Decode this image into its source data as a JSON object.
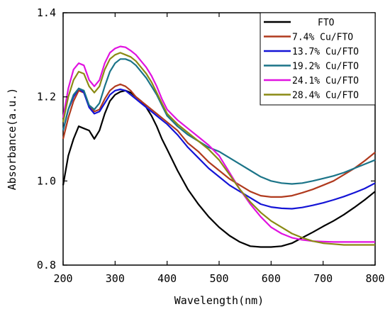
{
  "chart_data": {
    "type": "line",
    "xlabel": "Wavelength(nm)",
    "ylabel": "Absorbance(a.u.)",
    "xlim": [
      200,
      800
    ],
    "ylim": [
      0.8,
      1.4
    ],
    "xticks": [
      200,
      300,
      400,
      500,
      600,
      700,
      800
    ],
    "yticks": [
      0.8,
      1.0,
      1.2,
      1.4
    ],
    "ytick_labels": [
      "0.8",
      "1.0",
      "1.2",
      "1.4"
    ],
    "grid": false,
    "legend_position": "top-right",
    "series": [
      {
        "name": "FTO",
        "color": "#000000",
        "x": [
          200,
          210,
          220,
          230,
          240,
          250,
          260,
          270,
          280,
          290,
          300,
          310,
          320,
          330,
          340,
          350,
          360,
          370,
          380,
          390,
          400,
          420,
          440,
          460,
          480,
          500,
          520,
          540,
          560,
          580,
          600,
          620,
          640,
          660,
          680,
          700,
          720,
          740,
          760,
          780,
          800
        ],
        "y": [
          0.99,
          1.06,
          1.1,
          1.13,
          1.125,
          1.12,
          1.1,
          1.12,
          1.16,
          1.19,
          1.205,
          1.212,
          1.215,
          1.21,
          1.2,
          1.19,
          1.175,
          1.155,
          1.13,
          1.1,
          1.075,
          1.025,
          0.98,
          0.945,
          0.915,
          0.89,
          0.87,
          0.855,
          0.845,
          0.843,
          0.843,
          0.845,
          0.852,
          0.865,
          0.878,
          0.892,
          0.905,
          0.92,
          0.937,
          0.955,
          0.975
        ]
      },
      {
        "name": "7.4%  Cu/FTO",
        "color": "#b03a1e",
        "x": [
          200,
          210,
          220,
          230,
          240,
          250,
          260,
          270,
          280,
          290,
          300,
          310,
          320,
          330,
          340,
          350,
          360,
          370,
          380,
          390,
          400,
          420,
          440,
          460,
          480,
          500,
          520,
          540,
          560,
          580,
          600,
          620,
          640,
          660,
          680,
          700,
          720,
          740,
          760,
          780,
          800
        ],
        "y": [
          1.1,
          1.15,
          1.19,
          1.215,
          1.21,
          1.18,
          1.165,
          1.17,
          1.195,
          1.215,
          1.225,
          1.23,
          1.225,
          1.215,
          1.2,
          1.19,
          1.18,
          1.17,
          1.16,
          1.15,
          1.14,
          1.12,
          1.09,
          1.07,
          1.045,
          1.025,
          1.005,
          0.99,
          0.975,
          0.965,
          0.962,
          0.962,
          0.965,
          0.972,
          0.98,
          0.99,
          1.0,
          1.015,
          1.03,
          1.048,
          1.068
        ]
      },
      {
        "name": "13.7% Cu/FTO",
        "color": "#1414d6",
        "x": [
          200,
          210,
          220,
          230,
          240,
          250,
          260,
          270,
          280,
          290,
          300,
          310,
          320,
          330,
          340,
          350,
          360,
          370,
          380,
          390,
          400,
          420,
          440,
          460,
          480,
          500,
          520,
          540,
          560,
          580,
          600,
          620,
          640,
          660,
          680,
          700,
          720,
          740,
          760,
          780,
          800
        ],
        "y": [
          1.12,
          1.17,
          1.2,
          1.22,
          1.21,
          1.175,
          1.16,
          1.165,
          1.185,
          1.205,
          1.215,
          1.218,
          1.215,
          1.205,
          1.195,
          1.185,
          1.175,
          1.165,
          1.155,
          1.145,
          1.135,
          1.11,
          1.08,
          1.055,
          1.03,
          1.01,
          0.99,
          0.975,
          0.96,
          0.945,
          0.938,
          0.935,
          0.934,
          0.937,
          0.942,
          0.948,
          0.955,
          0.963,
          0.972,
          0.982,
          0.995
        ]
      },
      {
        "name": "19.2% Cu/FTO",
        "color": "#1b7488",
        "x": [
          200,
          210,
          220,
          230,
          240,
          250,
          260,
          270,
          280,
          290,
          300,
          310,
          320,
          330,
          340,
          350,
          360,
          370,
          380,
          390,
          400,
          420,
          440,
          460,
          480,
          500,
          520,
          540,
          560,
          580,
          600,
          620,
          640,
          660,
          680,
          700,
          720,
          740,
          760,
          780,
          800
        ],
        "y": [
          1.12,
          1.17,
          1.205,
          1.22,
          1.215,
          1.18,
          1.17,
          1.185,
          1.225,
          1.26,
          1.28,
          1.29,
          1.29,
          1.285,
          1.275,
          1.26,
          1.245,
          1.225,
          1.205,
          1.18,
          1.155,
          1.13,
          1.11,
          1.095,
          1.08,
          1.07,
          1.055,
          1.04,
          1.025,
          1.01,
          1.0,
          0.995,
          0.993,
          0.995,
          1.0,
          1.006,
          1.012,
          1.02,
          1.03,
          1.04,
          1.05
        ]
      },
      {
        "name": "24.1% Cu/FTO",
        "color": "#e012e0",
        "x": [
          200,
          210,
          220,
          230,
          240,
          250,
          260,
          270,
          280,
          290,
          300,
          310,
          320,
          330,
          340,
          350,
          360,
          370,
          380,
          390,
          400,
          420,
          440,
          460,
          480,
          500,
          520,
          540,
          560,
          580,
          600,
          620,
          640,
          660,
          680,
          700,
          720,
          740,
          760,
          780,
          800
        ],
        "y": [
          1.15,
          1.22,
          1.265,
          1.28,
          1.275,
          1.24,
          1.225,
          1.24,
          1.28,
          1.305,
          1.315,
          1.32,
          1.318,
          1.31,
          1.3,
          1.285,
          1.27,
          1.25,
          1.225,
          1.195,
          1.17,
          1.145,
          1.125,
          1.105,
          1.085,
          1.06,
          1.02,
          0.98,
          0.945,
          0.915,
          0.89,
          0.875,
          0.865,
          0.86,
          0.857,
          0.856,
          0.855,
          0.855,
          0.855,
          0.855,
          0.855
        ]
      },
      {
        "name": "28.4% Cu/FTO",
        "color": "#8a8a14",
        "x": [
          200,
          210,
          220,
          230,
          240,
          250,
          260,
          270,
          280,
          290,
          300,
          310,
          320,
          330,
          340,
          350,
          360,
          370,
          380,
          390,
          400,
          420,
          440,
          460,
          480,
          500,
          520,
          540,
          560,
          580,
          600,
          620,
          640,
          660,
          680,
          700,
          720,
          740,
          760,
          780,
          800
        ],
        "y": [
          1.14,
          1.2,
          1.24,
          1.26,
          1.255,
          1.225,
          1.21,
          1.225,
          1.265,
          1.29,
          1.3,
          1.305,
          1.3,
          1.295,
          1.285,
          1.27,
          1.255,
          1.235,
          1.21,
          1.185,
          1.16,
          1.135,
          1.115,
          1.095,
          1.075,
          1.05,
          1.015,
          0.98,
          0.95,
          0.925,
          0.905,
          0.89,
          0.875,
          0.865,
          0.857,
          0.852,
          0.85,
          0.848,
          0.848,
          0.848,
          0.848
        ]
      }
    ]
  }
}
